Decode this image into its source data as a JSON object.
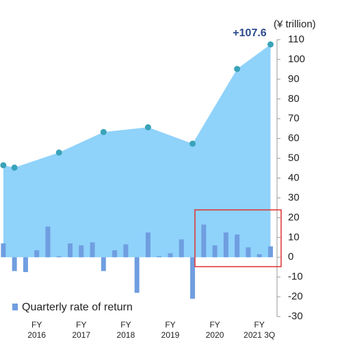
{
  "chart_data": {
    "type": "combo",
    "y_axis_label": "(¥ trillion)",
    "annotation": "+107.6",
    "xlim": [
      -0.3,
      24.4
    ],
    "ylim": [
      -30,
      110
    ],
    "yticks": [
      -30,
      -20,
      -10,
      0,
      10,
      20,
      30,
      40,
      50,
      60,
      70,
      80,
      90,
      100,
      110
    ],
    "xticks": [
      {
        "value": 3,
        "label": "FY\n2016"
      },
      {
        "value": 7,
        "label": "FY\n2017"
      },
      {
        "value": 11,
        "label": "FY\n2018"
      },
      {
        "value": 15,
        "label": "FY\n2019"
      },
      {
        "value": 19,
        "label": "FY\n2020"
      },
      {
        "value": 23,
        "label": "FY\n2021 3Q"
      }
    ],
    "series": [
      {
        "type": "area",
        "color": "#8fd2fa",
        "marker_color": "#3aa3b8",
        "x": [
          0,
          1,
          5,
          9,
          13,
          17,
          21,
          24
        ],
        "values": [
          46.5,
          45.3,
          52.9,
          63.3,
          65.7,
          57.4,
          95.2,
          107.6
        ]
      },
      {
        "type": "bar",
        "name": "Quarterly rate of return",
        "color": "#6f9ee0",
        "x": [
          0,
          1,
          2,
          3,
          4,
          5,
          6,
          7,
          8,
          9,
          10,
          11,
          12,
          13,
          14,
          15,
          16,
          17,
          18,
          19,
          20,
          21,
          22,
          23,
          24
        ],
        "values": [
          7,
          -7,
          -7.5,
          3.5,
          15.5,
          0.5,
          7,
          6,
          7.5,
          -7,
          3.5,
          6.5,
          -18,
          12.5,
          0.5,
          2,
          9,
          -21,
          16.5,
          6,
          12.5,
          11.5,
          5,
          1.5,
          5.5
        ]
      }
    ]
  }
}
